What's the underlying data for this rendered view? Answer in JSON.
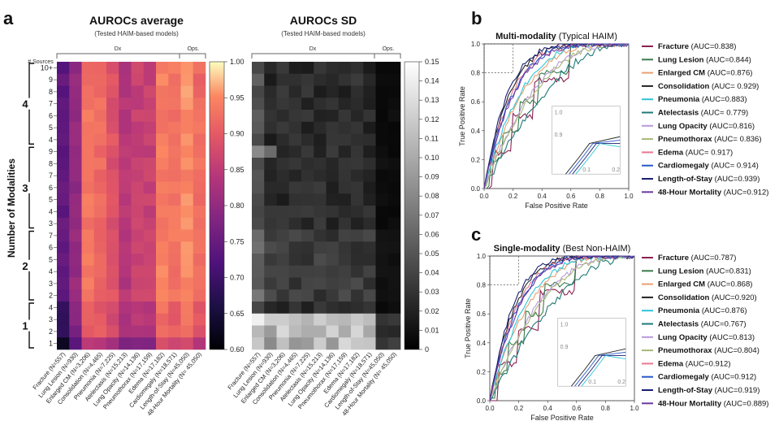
{
  "panel_labels": {
    "a": "a",
    "b": "b",
    "c": "c"
  },
  "heatmap_avg": {
    "title": "AUROCs average",
    "subtitle": "(Tested HAIM-based models)",
    "colorbar_ticks": [
      "1.00",
      "0.95",
      "0.90",
      "0.85",
      "0.80",
      "0.75",
      "0.70",
      "0.65",
      "0.60"
    ]
  },
  "heatmap_sd": {
    "title": "AUROCs SD",
    "subtitle": "(Tested HAIM-based models)",
    "colorbar_ticks": [
      "0.15",
      "0.14",
      "0.13",
      "0.12",
      "0.11",
      "0.10",
      "0.09",
      "0.08",
      "0.07",
      "0.06",
      "0.05",
      "0.04",
      "0.03",
      "0.02",
      "0.01",
      "0"
    ]
  },
  "groups": {
    "dx": "Dx",
    "ops": "Ops."
  },
  "sources_label": "# Sources",
  "y_axis_label": "Number of Modalities",
  "row_ticks": [
    "10+",
    "9",
    "8",
    "7",
    "6",
    "5",
    "4",
    "9",
    "8",
    "7",
    "6",
    "5",
    "4",
    "3",
    "7",
    "6",
    "5",
    "4",
    "3",
    "2",
    "4",
    "3",
    "2",
    "1"
  ],
  "modality_groups": [
    "4",
    "3",
    "2",
    "1"
  ],
  "columns": [
    "Fracture (N=557)",
    "Lung Lesion (N=930)",
    "Enlarged CM (N=3,206)",
    "Consolidation (N=4,465)",
    "Pneumonia (N=7,225)",
    "Atelectasis (N=15,213)",
    "Lung Opacity (N=14,136)",
    "Pneumothorax (N=17,159)",
    "Edema (N=17,182)",
    "Cardiomegaly (N=18,571)",
    "Length-of-Stay (N=45,050)",
    "48-Hour Mortality (N= 45,050)"
  ],
  "roc_common": {
    "xlabel": "False Positive Rate",
    "ylabel": "True Positive Rate",
    "ticks": [
      "0.0",
      "0.2",
      "0.4",
      "0.6",
      "0.8",
      "1.0"
    ],
    "inset_ticks": {
      "x1": "0.1",
      "x2": "0.2",
      "y1": "1.0",
      "y2": "0.9"
    }
  },
  "roc_b": {
    "title_bold": "Multi-modality",
    "title_rest": " (Typical HAIM)",
    "legend": [
      {
        "name": "Fracture",
        "auc": " (AUC=0.838)",
        "color": "#8b2252"
      },
      {
        "name": "Lung Lesion",
        "auc": " (AUC=0.844)",
        "color": "#3a7a4a"
      },
      {
        "name": "Enlarged CM",
        "auc": " (AUC=0.876)",
        "color": "#e8a070"
      },
      {
        "name": "Consolidation",
        "auc": " (AUC= 0.929)",
        "color": "#222222"
      },
      {
        "name": "Pneumonia",
        "auc": " (AUC=0.883)",
        "color": "#2ec4d6"
      },
      {
        "name": "Atelectasis",
        "auc": " (AUC= 0.779)",
        "color": "#1f7a78"
      },
      {
        "name": "Lung Opacity",
        "auc": " (AUC=0.816)",
        "color": "#b79ad8"
      },
      {
        "name": "Pneumothorax",
        "auc": " (AUC= 0.836)",
        "color": "#a8b878"
      },
      {
        "name": "Edema",
        "auc": " (AUC= 0.917)",
        "color": "#e87890"
      },
      {
        "name": "Cardiomegaly",
        "auc": " (AUC= 0.914)",
        "color": "#2856c8"
      },
      {
        "name": "Length-of-Stay",
        "auc": " (AUC=0.939)",
        "color": "#1a1f6e"
      },
      {
        "name": "48-Hour Mortality",
        "auc": " (AUC=0.912)",
        "color": "#6a3aa0"
      }
    ]
  },
  "roc_c": {
    "title_bold": "Single-modality",
    "title_rest": " (Best Non-HAIM)",
    "legend": [
      {
        "name": "Fracture",
        "auc": " (AUC=0.787)",
        "color": "#8b2252"
      },
      {
        "name": "Lung Lesion",
        "auc": " (AUC=0.831)",
        "color": "#3a7a4a"
      },
      {
        "name": "Enlarged CM",
        "auc": " (AUC=0.868)",
        "color": "#e8a070"
      },
      {
        "name": "Consolidation",
        "auc": " (AUC=0.920)",
        "color": "#222222"
      },
      {
        "name": "Pneumonia",
        "auc": " (AUC=0.876)",
        "color": "#2ec4d6"
      },
      {
        "name": "Atelectasis",
        "auc": " (AUC=0.767)",
        "color": "#1f7a78"
      },
      {
        "name": "Lung Opacity",
        "auc": " (AUC=0.813)",
        "color": "#b79ad8"
      },
      {
        "name": "Pneumothorax",
        "auc": " (AUC=0.804)",
        "color": "#a8b878"
      },
      {
        "name": "Edema",
        "auc": " (AUC=0.912)",
        "color": "#e87890"
      },
      {
        "name": "Cardiomegaly",
        "auc": " (AUC=0.912)",
        "color": "#2856c8"
      },
      {
        "name": "Length-of-Stay",
        "auc": " (AUC=0.919)",
        "color": "#1a1f6e"
      },
      {
        "name": "48-Hour Mortality",
        "auc": " (AUC=0.889)",
        "color": "#6a3aa0"
      }
    ]
  },
  "chart_data": [
    {
      "type": "heatmap",
      "title": "AUROCs average",
      "colorbar_range": [
        0.6,
        1.0
      ],
      "column_base_values": [
        0.74,
        0.8,
        0.93,
        0.92,
        0.89,
        0.84,
        0.86,
        0.86,
        0.94,
        0.93,
        0.95,
        0.92
      ]
    },
    {
      "type": "heatmap",
      "title": "AUROCs SD",
      "colorbar_range": [
        0,
        0.15
      ]
    },
    {
      "type": "line",
      "title": "Multi-modality (Typical HAIM)",
      "xlim": [
        0,
        1
      ],
      "ylim": [
        0,
        1
      ]
    },
    {
      "type": "line",
      "title": "Single-modality (Best Non-HAIM)",
      "xlim": [
        0,
        1
      ],
      "ylim": [
        0,
        1
      ]
    }
  ]
}
